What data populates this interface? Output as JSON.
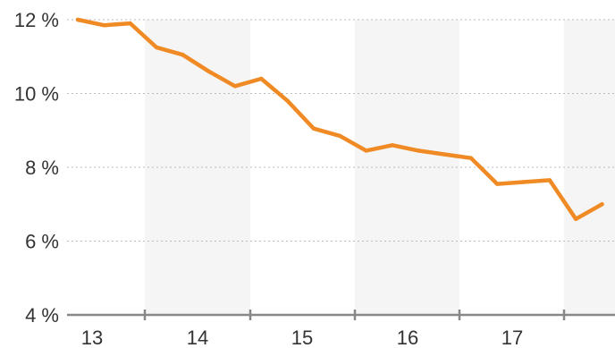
{
  "chart_data": {
    "type": "line",
    "title": "",
    "xlabel": "",
    "ylabel": "",
    "x_tick_labels": [
      "13",
      "14",
      "15",
      "16",
      "17"
    ],
    "y_tick_labels": [
      "4 %",
      "6 %",
      "8 %",
      "10 %",
      "12 %"
    ],
    "y_ticks": [
      4,
      6,
      8,
      10,
      12
    ],
    "ylim": [
      4,
      12
    ],
    "x_unit": "year (quarterly)",
    "x": [
      2013.0,
      2013.25,
      2013.5,
      2013.75,
      2014.0,
      2014.25,
      2014.5,
      2014.75,
      2015.0,
      2015.25,
      2015.5,
      2015.75,
      2016.0,
      2016.25,
      2016.5,
      2016.75,
      2017.0,
      2017.25,
      2017.5,
      2017.75,
      2018.0
    ],
    "series": [
      {
        "values": [
          12.0,
          11.85,
          11.9,
          11.25,
          11.05,
          10.6,
          10.2,
          10.4,
          9.8,
          9.05,
          8.85,
          8.45,
          8.6,
          8.45,
          8.35,
          8.25,
          7.55,
          7.6,
          7.65,
          6.6,
          7.0
        ]
      }
    ],
    "grid": "horizontal dotted",
    "alternating_year_bands": true,
    "colors": {
      "line": "#f08a24",
      "band": "#f5f5f5",
      "grid": "#bbbbbb",
      "axis": "#888888",
      "text": "#333333"
    }
  }
}
